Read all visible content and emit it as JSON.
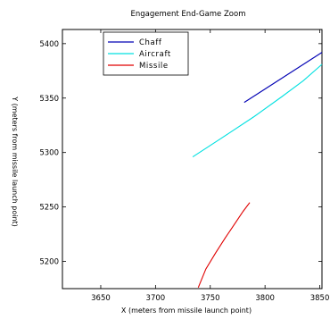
{
  "chart_data": {
    "type": "line",
    "title": "Engagement End-Game Zoom",
    "xlabel": "X (meters from missile launch point)",
    "ylabel": "Y (meters from missile launch point)",
    "xlim": [
      3615,
      3852
    ],
    "ylim": [
      5175,
      5413
    ],
    "xticks": [
      3650,
      3700,
      3750,
      3800,
      3850
    ],
    "yticks": [
      5200,
      5250,
      5300,
      5350,
      5400
    ],
    "grid": false,
    "legend_position": "top-left",
    "series": [
      {
        "name": "Chaff",
        "color": "#0000b4",
        "x": [
          3781,
          3852
        ],
        "y": [
          5346,
          5392
        ]
      },
      {
        "name": "Aircraft",
        "color": "#00e0e0",
        "x": [
          3734,
          3760,
          3790,
          3815,
          3835,
          3852
        ],
        "y": [
          5296,
          5313,
          5333,
          5351,
          5366,
          5381
        ]
      },
      {
        "name": "Missile",
        "color": "#e00000",
        "x": [
          3739,
          3746,
          3755,
          3764,
          3772,
          3780,
          3786
        ],
        "y": [
          5176,
          5193,
          5208,
          5222,
          5234,
          5246,
          5254
        ]
      }
    ]
  }
}
